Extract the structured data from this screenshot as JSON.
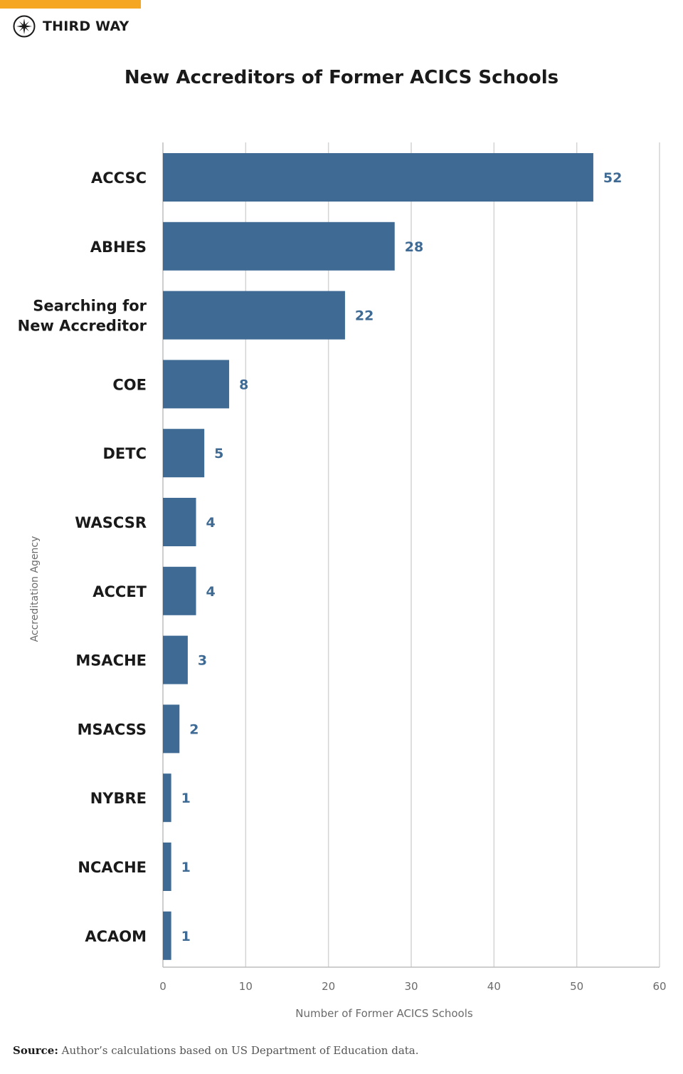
{
  "brand": {
    "name": "THIRD WAY",
    "logo_icon": "compass-star-icon",
    "accent_color": "#f5a623"
  },
  "chart_data": {
    "type": "bar",
    "orientation": "horizontal",
    "title": "New Accreditors of Former ACICS Schools",
    "xlabel": "Number of Former ACICS Schools",
    "ylabel": "Accreditation Agency",
    "categories": [
      [
        "ACCSC"
      ],
      [
        "ABHES"
      ],
      [
        "Searching for",
        "New Accreditor"
      ],
      [
        "COE"
      ],
      [
        "DETC"
      ],
      [
        "WASCSR"
      ],
      [
        "ACCET"
      ],
      [
        "MSACHE"
      ],
      [
        "MSACSS"
      ],
      [
        "NYBRE"
      ],
      [
        "NCACHE"
      ],
      [
        "ACAOM"
      ]
    ],
    "values": [
      52,
      28,
      22,
      8,
      5,
      4,
      4,
      3,
      2,
      1,
      1,
      1
    ],
    "xlim": [
      0,
      60
    ],
    "xticks": [
      0,
      10,
      20,
      30,
      40,
      50,
      60
    ],
    "grid": true,
    "data_labels": true,
    "colors": {
      "bar": "#3e6a94",
      "value_label": "#3e6a94",
      "grid": "#d4d4d4"
    }
  },
  "source": {
    "label": "Source:",
    "text": "Author’s calculations based on US Department of Education data."
  }
}
